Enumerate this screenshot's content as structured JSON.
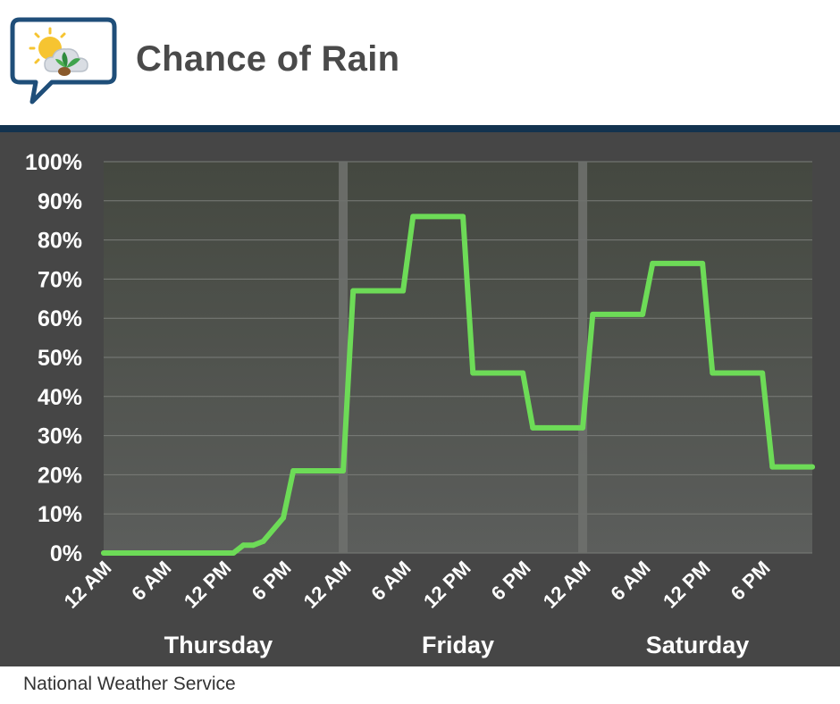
{
  "header": {
    "title": "Chance of Rain",
    "logo_icon": "weather-sun-cloud-plant-icon"
  },
  "footer": {
    "source": "National Weather Service"
  },
  "colors": {
    "line": "#6ddb57",
    "panel_bg": "#464646",
    "plot_top": "#444840",
    "plot_bottom": "#5c5e5c",
    "grid": "#7a7d79",
    "day_separator": "#6e706d",
    "divider": "#13334f",
    "title": "#4a4a4a"
  },
  "chart_data": {
    "type": "line",
    "title": "Chance of Rain",
    "ylim": [
      0,
      100
    ],
    "xlim": [
      0,
      71
    ],
    "y_ticks": [
      "0%",
      "10%",
      "20%",
      "30%",
      "40%",
      "50%",
      "60%",
      "70%",
      "80%",
      "90%",
      "100%"
    ],
    "x_ticks": [
      {
        "label": "12 AM",
        "hour": 0
      },
      {
        "label": "6 AM",
        "hour": 6
      },
      {
        "label": "12 PM",
        "hour": 12
      },
      {
        "label": "6 PM",
        "hour": 18
      },
      {
        "label": "12 AM",
        "hour": 24
      },
      {
        "label": "6 AM",
        "hour": 30
      },
      {
        "label": "12 PM",
        "hour": 36
      },
      {
        "label": "6 PM",
        "hour": 42
      },
      {
        "label": "12 AM",
        "hour": 48
      },
      {
        "label": "6 AM",
        "hour": 54
      },
      {
        "label": "12 PM",
        "hour": 60
      },
      {
        "label": "6 PM",
        "hour": 66
      }
    ],
    "days": [
      {
        "label": "Thursday",
        "center_hour": 11.5
      },
      {
        "label": "Friday",
        "center_hour": 35.5
      },
      {
        "label": "Saturday",
        "center_hour": 59.5
      }
    ],
    "day_separators_hours": [
      24,
      48
    ],
    "grid": true,
    "series": [
      {
        "points": [
          [
            0,
            0
          ],
          [
            13,
            0
          ],
          [
            14,
            2
          ],
          [
            15,
            2
          ],
          [
            16,
            3
          ],
          [
            18,
            9
          ],
          [
            19,
            21
          ],
          [
            24,
            21
          ],
          [
            25,
            67
          ],
          [
            30,
            67
          ],
          [
            31,
            86
          ],
          [
            36,
            86
          ],
          [
            37,
            46
          ],
          [
            42,
            46
          ],
          [
            43,
            32
          ],
          [
            48,
            32
          ],
          [
            49,
            61
          ],
          [
            54,
            61
          ],
          [
            55,
            74
          ],
          [
            60,
            74
          ],
          [
            61,
            46
          ],
          [
            66,
            46
          ],
          [
            67,
            22
          ],
          [
            71,
            22
          ]
        ]
      }
    ]
  }
}
